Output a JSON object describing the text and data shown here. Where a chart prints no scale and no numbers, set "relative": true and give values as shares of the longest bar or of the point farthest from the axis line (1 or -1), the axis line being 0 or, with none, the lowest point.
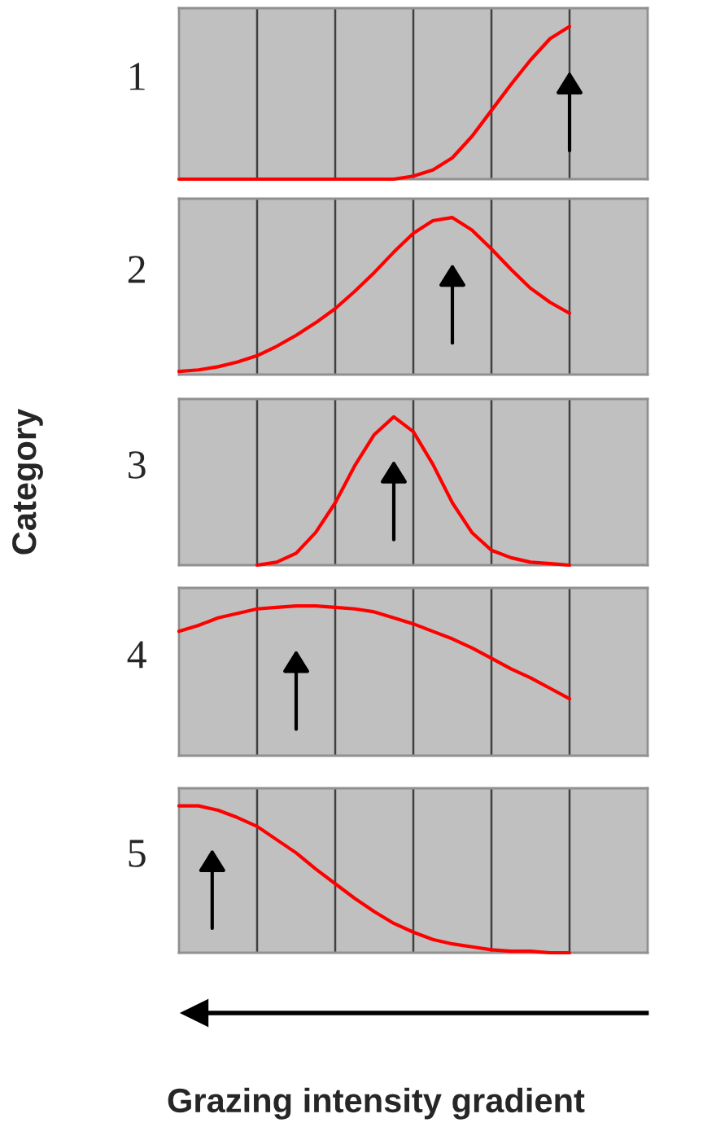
{
  "chart_data": [
    {
      "type": "line",
      "title": "1",
      "relative": true,
      "grid": "x",
      "categories": [
        null,
        null,
        null,
        null,
        null,
        null,
        null,
        null,
        null,
        null,
        null,
        null,
        null,
        null,
        null,
        null,
        null,
        null,
        null,
        null,
        null
      ],
      "series": [
        {
          "color": "#ff0000",
          "values": [
            0,
            0,
            0,
            0,
            0,
            0,
            0,
            0,
            0,
            0,
            0,
            0,
            0.02,
            0.06,
            0.14,
            0.28,
            0.45,
            0.62,
            0.78,
            0.92,
            1.0
          ]
        }
      ]
    },
    {
      "type": "line",
      "title": "2",
      "relative": true,
      "grid": "x",
      "categories": [
        null,
        null,
        null,
        null,
        null,
        null,
        null,
        null,
        null,
        null,
        null,
        null,
        null,
        null,
        null,
        null,
        null,
        null,
        null,
        null,
        null
      ],
      "series": [
        {
          "color": "#ff0000",
          "values": [
            0.02,
            0.03,
            0.05,
            0.08,
            0.12,
            0.18,
            0.25,
            0.33,
            0.42,
            0.53,
            0.65,
            0.78,
            0.9,
            0.98,
            1.0,
            0.92,
            0.8,
            0.67,
            0.55,
            0.46,
            0.39
          ]
        }
      ]
    },
    {
      "type": "line",
      "title": "3",
      "ylabel": "Category",
      "relative": true,
      "grid": "x",
      "categories": [
        null,
        null,
        null,
        null,
        null,
        null,
        null,
        null,
        null,
        null,
        null,
        null,
        null,
        null,
        null,
        null,
        null,
        null,
        null,
        null,
        null
      ],
      "series": [
        {
          "color": "#ff0000",
          "values": [
            null,
            null,
            null,
            null,
            0,
            0.02,
            0.08,
            0.22,
            0.42,
            0.67,
            0.88,
            1.0,
            0.9,
            0.68,
            0.42,
            0.22,
            0.1,
            0.05,
            0.02,
            0.01,
            0
          ]
        }
      ]
    },
    {
      "type": "line",
      "title": "4",
      "relative": true,
      "grid": "x",
      "categories": [
        null,
        null,
        null,
        null,
        null,
        null,
        null,
        null,
        null,
        null,
        null,
        null,
        null,
        null,
        null,
        null,
        null,
        null,
        null,
        null,
        null
      ],
      "series": [
        {
          "color": "#ff0000",
          "values": [
            0.83,
            0.87,
            0.92,
            0.95,
            0.98,
            0.99,
            1.0,
            1.0,
            0.99,
            0.98,
            0.96,
            0.92,
            0.88,
            0.83,
            0.78,
            0.72,
            0.65,
            0.58,
            0.52,
            0.45,
            0.38
          ]
        }
      ]
    },
    {
      "type": "line",
      "title": "5",
      "xlabel": "Grazing intensity gradient",
      "relative": true,
      "grid": "x",
      "categories": [
        null,
        null,
        null,
        null,
        null,
        null,
        null,
        null,
        null,
        null,
        null,
        null,
        null,
        null,
        null,
        null,
        null,
        null,
        null,
        null,
        null
      ],
      "series": [
        {
          "color": "#ff0000",
          "values": [
            1.0,
            1.0,
            0.97,
            0.92,
            0.86,
            0.77,
            0.68,
            0.57,
            0.47,
            0.37,
            0.28,
            0.2,
            0.14,
            0.09,
            0.06,
            0.04,
            0.02,
            0.01,
            0.01,
            0,
            0
          ]
        }
      ]
    }
  ]
}
